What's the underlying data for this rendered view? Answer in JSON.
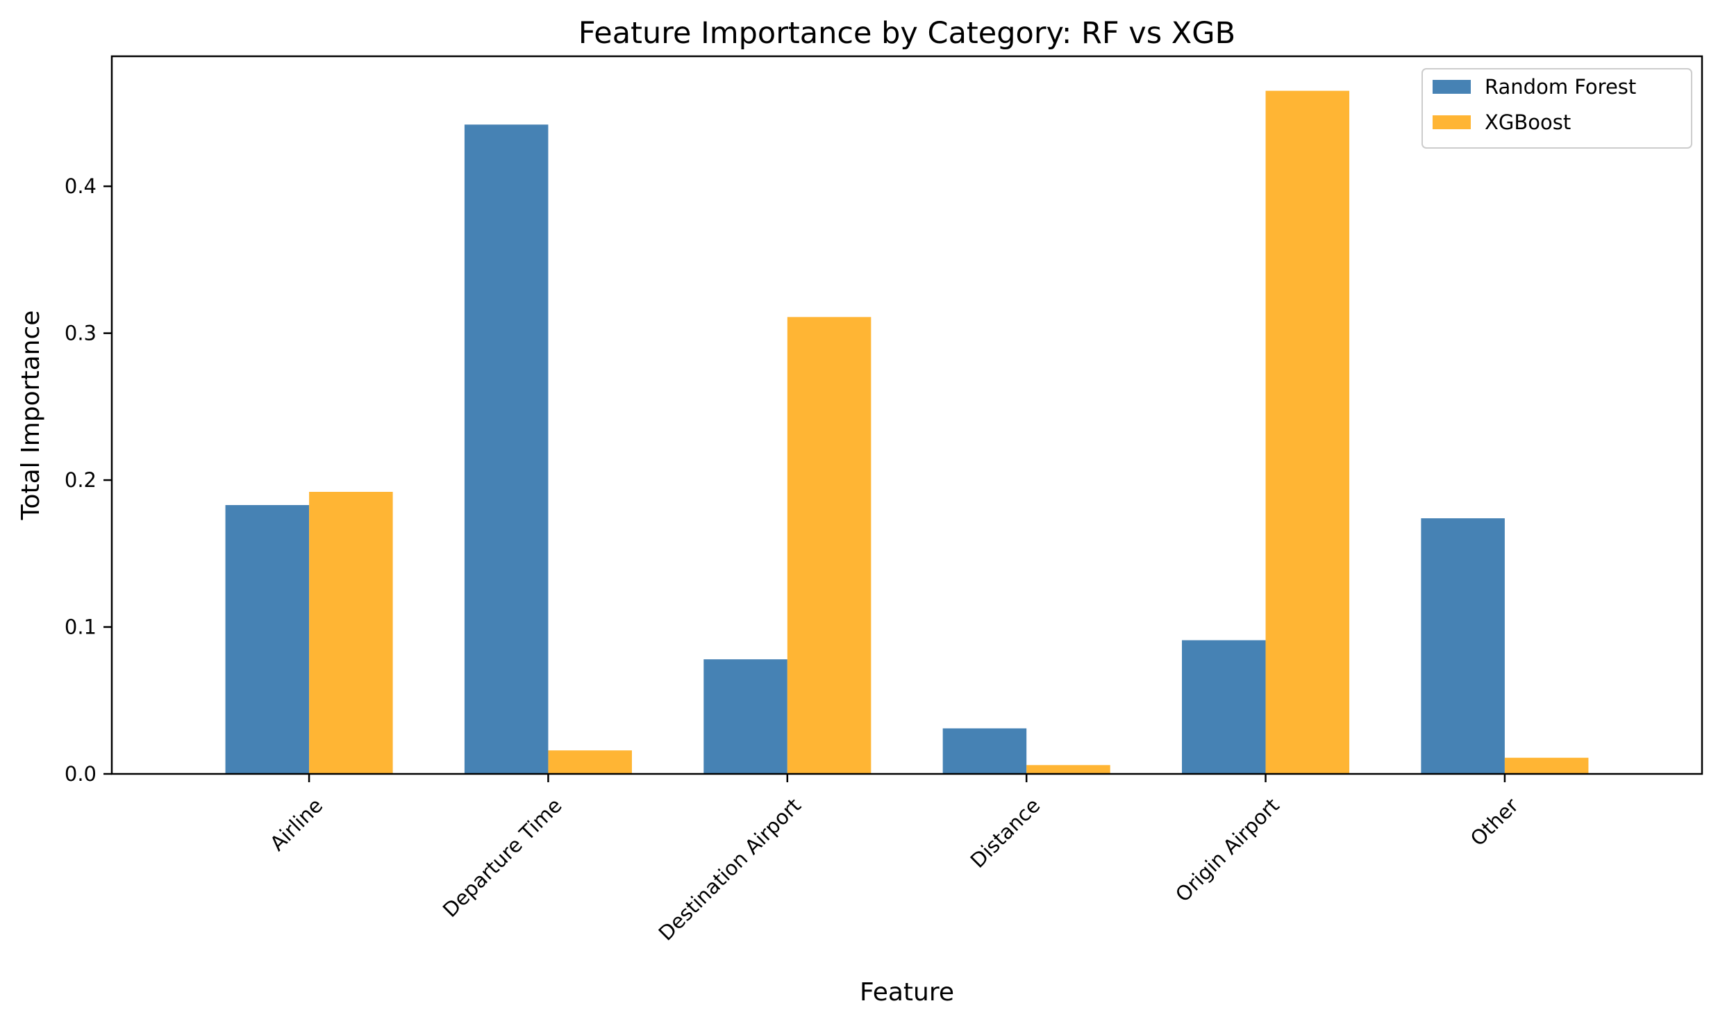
{
  "chart_data": {
    "type": "bar",
    "title": "Feature Importance by Category: RF vs XGB",
    "xlabel": "Feature",
    "ylabel": "Total Importance",
    "categories": [
      "Airline",
      "Departure Time",
      "Destination Airport",
      "Distance",
      "Origin Airport",
      "Other"
    ],
    "series": [
      {
        "name": "Random Forest",
        "color": "#4682b4",
        "values": [
          0.183,
          0.442,
          0.078,
          0.031,
          0.091,
          0.174
        ]
      },
      {
        "name": "XGBoost",
        "color": "#ffb534",
        "values": [
          0.192,
          0.016,
          0.311,
          0.006,
          0.465,
          0.011
        ]
      }
    ],
    "yticks": [
      0.0,
      0.1,
      0.2,
      0.3,
      0.4
    ],
    "ytick_labels": [
      "0.0",
      "0.1",
      "0.2",
      "0.3",
      "0.4"
    ],
    "ylim": [
      0,
      0.4885
    ],
    "grid": false,
    "legend_position": "top-right"
  }
}
